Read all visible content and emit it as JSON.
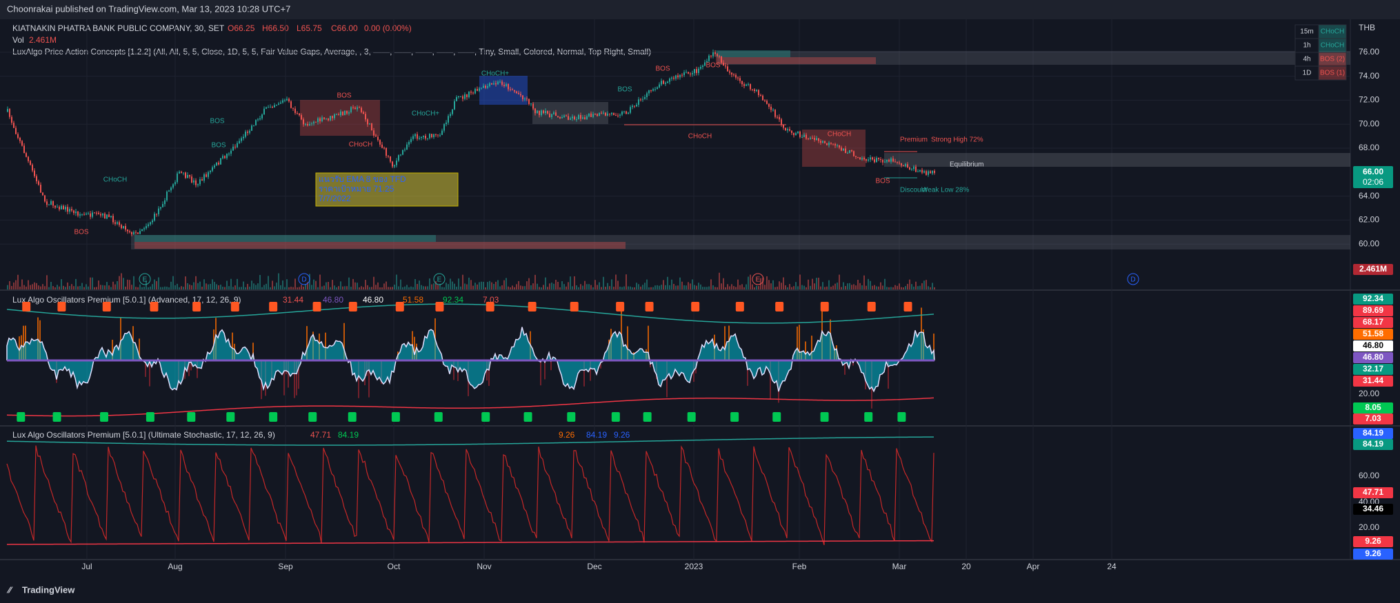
{
  "header": {
    "published": "Choonrakai published on TradingView.com, Mar 13, 2023 10:28 UTC+7",
    "brand": "TradingView"
  },
  "symbol": {
    "name": "KIATNAKIN PHATRA BANK PUBLIC COMPANY, 30, SET",
    "open": "O66.25",
    "high": "H66.50",
    "low": "L65.75",
    "close": "C66.00",
    "change": "0.00 (0.00%)"
  },
  "volume": {
    "label": "Vol",
    "value": "2.461M"
  },
  "indicator": "LuxAlgo Price Action Concepts [1.2.2] (All, All, 5, 5, Close, 1D, 5, 5, Fair Value Gaps, Average, , 3, ——, ——, ——, ——, ——, Tiny, Small, Colored, Normal, Top Right, Small)",
  "currency": "THB",
  "mtf_table": [
    [
      "15m",
      "CHoCH"
    ],
    [
      "1h",
      "CHoCH"
    ],
    [
      "4h",
      "BOS (2)"
    ],
    [
      "1D",
      "BOS (1)"
    ]
  ],
  "price_axis": [
    "76.00",
    "74.00",
    "72.00",
    "70.00",
    "68.00",
    "64.00",
    "62.00",
    "60.00"
  ],
  "price_badge": {
    "price": "66.00",
    "countdown": "02:06",
    "volume": "2.461M"
  },
  "annotations": {
    "premium": "Premium",
    "strong_high": "Strong High 72%",
    "equilibrium": "Equilibrium",
    "discount": "Discount",
    "weak_low": "Weak Low 28%"
  },
  "note_box": [
    "แนวรับ EMA 8 ของ TFD",
    "ราคาเป้าหมาย 71.25",
    "7/7/2022"
  ],
  "structure_labels": [
    "CHoCH",
    "BOS",
    "BOS",
    "BOS",
    "CHoCH+",
    "BOS",
    "CHoCH",
    "CHoCH+",
    "CHoCH",
    "BOS",
    "CHoCH",
    "BOS",
    "BOS",
    "BOS"
  ],
  "events": [
    "E",
    "D",
    "E",
    "E",
    "D"
  ],
  "oscillator1": {
    "title": "Lux Algo Oscillators Premium [5.0.1] (Advanced, 17, 12, 26, 9)",
    "values": [
      "31.44",
      "46.80",
      "46.80",
      "51.58",
      "92.34",
      "7.03"
    ],
    "axis": [
      "92.34",
      "89.69",
      "68.17",
      "51.58",
      "46.80",
      "46.80",
      "32.17",
      "31.44",
      "20.00",
      "8.05",
      "7.03"
    ]
  },
  "oscillator2": {
    "title": "Lux Algo Oscillators Premium [5.0.1] (Ultimate Stochastic, 17, 12, 26, 9)",
    "values": [
      "47.71",
      "84.19",
      "9.26",
      "84.19",
      "9.26"
    ],
    "axis": [
      "84.19",
      "84.19",
      "60.00",
      "47.71",
      "40.00",
      "34.46",
      "20.00",
      "9.26",
      "9.26"
    ]
  },
  "time_axis": [
    "Jul",
    "Aug",
    "Sep",
    "Oct",
    "Nov",
    "Dec",
    "2023",
    "Feb",
    "Mar",
    "20",
    "Apr",
    "24"
  ]
}
